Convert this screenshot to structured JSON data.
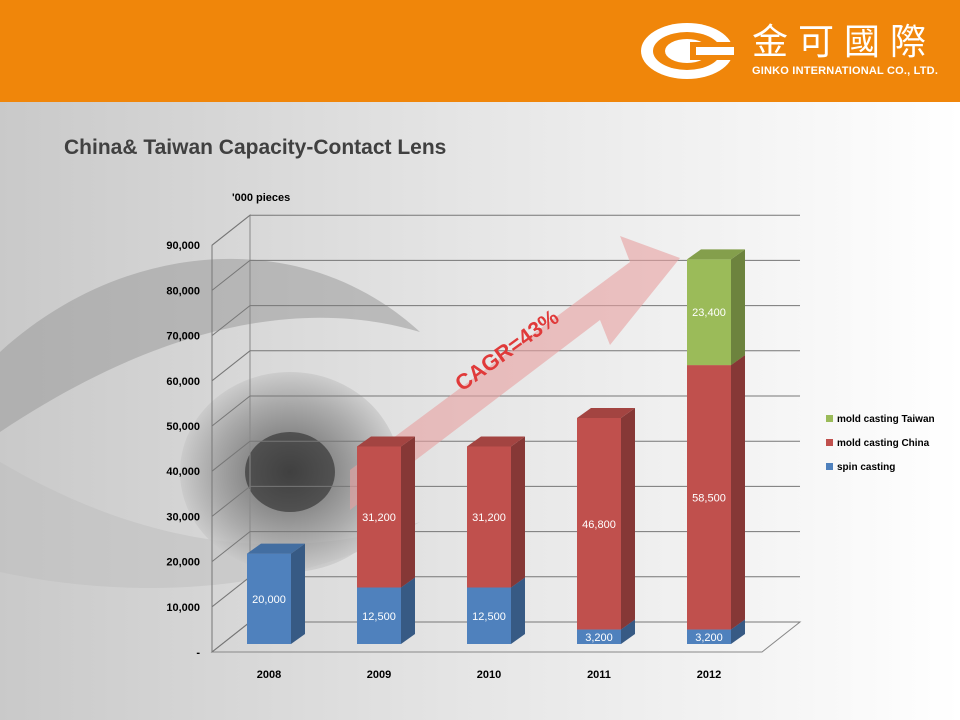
{
  "header": {
    "logo_cn": "金可國際",
    "logo_en": "GINKO INTERNATIONAL CO., LTD.",
    "bg_color": "#f0860a"
  },
  "page_title": "China& Taiwan Capacity-Contact Lens",
  "chart_data": {
    "type": "bar",
    "stacked": true,
    "three_d": true,
    "unit_label": "'000 pieces",
    "categories": [
      "2008",
      "2009",
      "2010",
      "2011",
      "2012"
    ],
    "series": [
      {
        "name": "spin casting",
        "color": "#4f81bd",
        "values": [
          20000,
          12500,
          12500,
          3200,
          3200
        ],
        "labels": [
          "20,000",
          "12,500",
          "12,500",
          "3,200",
          "3,200"
        ]
      },
      {
        "name": "mold casting China",
        "color": "#c0504d",
        "values": [
          0,
          31200,
          31200,
          46800,
          58500
        ],
        "labels": [
          "",
          "31,200",
          "31,200",
          "46,800",
          "58,500"
        ]
      },
      {
        "name": "mold casting Taiwan",
        "color": "#9bbb59",
        "values": [
          0,
          0,
          0,
          0,
          23400
        ],
        "labels": [
          "",
          "",
          "",
          "",
          "23,400"
        ]
      }
    ],
    "ylim": [
      0,
      90000
    ],
    "y_ticks": [
      0,
      10000,
      20000,
      30000,
      40000,
      50000,
      60000,
      70000,
      80000,
      90000
    ],
    "y_tick_labels": [
      "-",
      "10,000",
      "20,000",
      "30,000",
      "40,000",
      "50,000",
      "60,000",
      "70,000",
      "80,000",
      "90,000"
    ],
    "grid": true,
    "legend": "right",
    "annotation": "CAGR=43%"
  }
}
